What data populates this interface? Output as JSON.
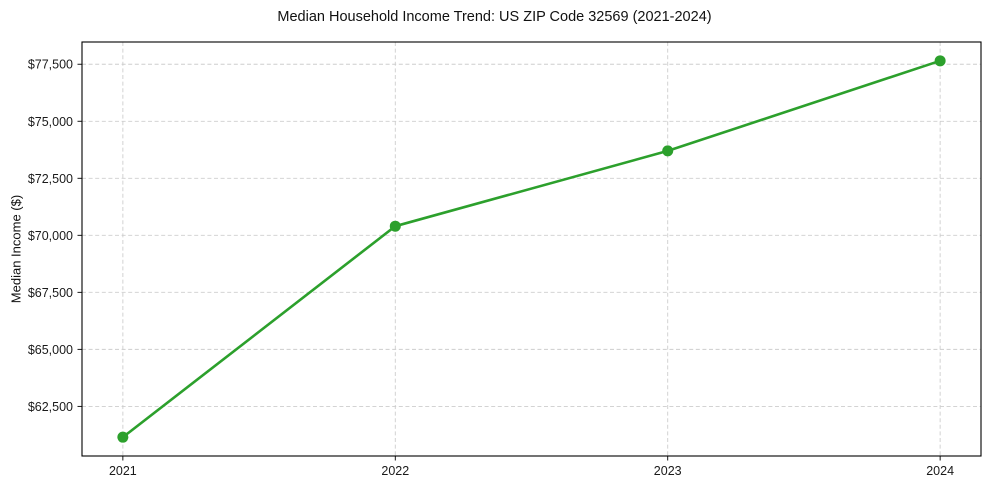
{
  "chart_data": {
    "type": "line",
    "title": "Median Household Income Trend: US ZIP Code 32569 (2021-2024)",
    "xlabel": "",
    "ylabel": "Median Income ($)",
    "x": [
      2021,
      2022,
      2023,
      2024
    ],
    "series": [
      {
        "name": "Median Household Income",
        "values": [
          61150,
          70400,
          73700,
          77650
        ],
        "color": "#2ca02c"
      }
    ],
    "xlim": [
      2020.85,
      2024.15
    ],
    "ylim": [
      60325,
      78475
    ],
    "xticks": [
      2021,
      2022,
      2023,
      2024
    ],
    "xtick_labels": [
      "2021",
      "2022",
      "2023",
      "2024"
    ],
    "yticks": [
      62500,
      65000,
      67500,
      70000,
      72500,
      75000,
      77500
    ],
    "ytick_labels": [
      "$62,500",
      "$65,000",
      "$67,500",
      "$70,000",
      "$72,500",
      "$75,000",
      "$77,500"
    ],
    "grid": true,
    "grid_style": "dashed",
    "grid_color": "#cdcdcd",
    "axis_color": "#000000",
    "text_color": "#1a1a1a",
    "legend": false
  }
}
